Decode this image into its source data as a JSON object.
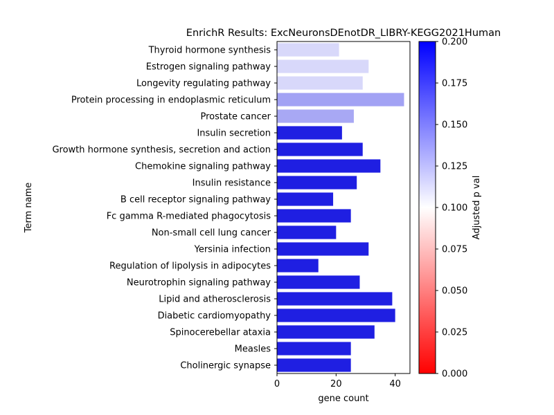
{
  "chart_data": {
    "type": "bar",
    "orientation": "horizontal",
    "title": "EnrichR Results: ExcNeuronsDEnotDR_LIBRY-KEGG2021Human",
    "xlabel": "gene count",
    "ylabel": "Term name",
    "xlim": [
      0,
      45
    ],
    "xticks": [
      0,
      20,
      40
    ],
    "grid": false,
    "categories": [
      "Thyroid hormone synthesis",
      "Estrogen signaling pathway",
      "Longevity regulating pathway",
      "Protein processing in endoplasmic reticulum",
      "Prostate cancer",
      "Insulin secretion",
      "Growth hormone synthesis, secretion and action",
      "Chemokine signaling pathway",
      "Insulin resistance",
      "B cell receptor signaling pathway",
      "Fc gamma R-mediated phagocytosis",
      "Non-small cell lung cancer",
      "Yersinia infection",
      "Regulation of lipolysis in adipocytes",
      "Neurotrophin signaling pathway",
      "Lipid and atherosclerosis",
      "Diabetic cardiomyopathy",
      "Spinocerebellar ataxia",
      "Measles",
      "Cholinergic synapse"
    ],
    "values": [
      21,
      31,
      29,
      43,
      26,
      22,
      29,
      35,
      27,
      19,
      25,
      20,
      31,
      14,
      28,
      39,
      40,
      33,
      25,
      25
    ],
    "bar_colors": [
      "#d8d8fa",
      "#d8d8fa",
      "#d8d8fa",
      "#a2a2f4",
      "#a8a8f4",
      "#1f1fe2",
      "#1f1fe2",
      "#1f1fe2",
      "#1f1fe2",
      "#1f1fe2",
      "#1f1fe2",
      "#1f1fe2",
      "#1f1fe2",
      "#1f1fe2",
      "#1f1fe2",
      "#1f1fe2",
      "#1f1fe2",
      "#1f1fe2",
      "#1f1fe2",
      "#1f1fe2"
    ],
    "colorbar": {
      "label": "Adjusted p val",
      "range": [
        0,
        0.2
      ],
      "ticks": [
        "0.000",
        "0.025",
        "0.050",
        "0.075",
        "0.100",
        "0.125",
        "0.150",
        "0.175",
        "0.200"
      ],
      "colormap": [
        "#ff0000",
        "#ffffff",
        "#0000ff"
      ]
    }
  }
}
